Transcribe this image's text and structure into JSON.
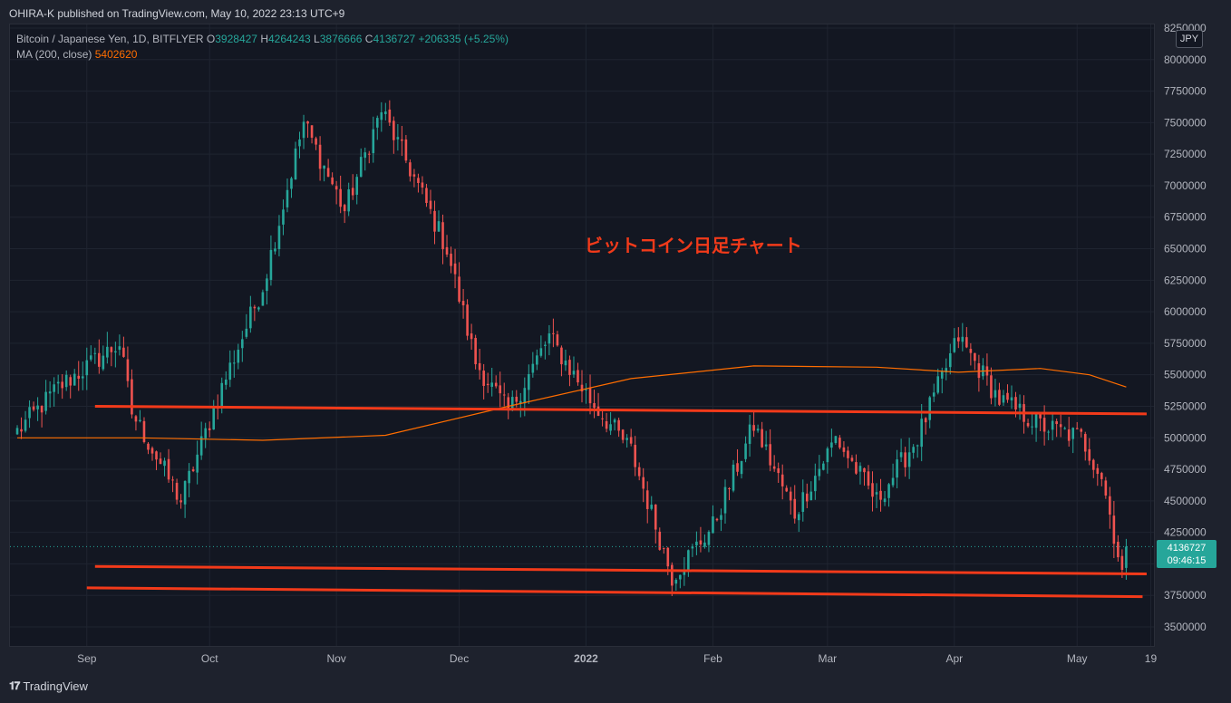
{
  "header": {
    "published": "OHIRA-K published on TradingView.com, May 10, 2022 23:13 UTC+9"
  },
  "legend": {
    "symbol": "Bitcoin / Japanese Yen, 1D, BITFLYER",
    "o_label": "O",
    "o_value": "3928427",
    "h_label": "H",
    "h_value": "4264243",
    "l_label": "L",
    "l_value": "3876666",
    "c_label": "C",
    "c_value": "4136727",
    "change": "+206335 (+5.25%)",
    "ma_label": "MA (200, close)",
    "ma_value": "5402620"
  },
  "annotation": "ビットコイン日足チャート",
  "currency": "JPY",
  "price_tag": {
    "price": "4136727",
    "countdown": "09:46:15"
  },
  "footer": {
    "logo_text": "TradingView"
  },
  "colors": {
    "up": "#26a69a",
    "down": "#ef5350",
    "ma": "#ff6d00",
    "trendline": "#f23a1a",
    "background": "#131722"
  },
  "chart_data": {
    "type": "candlestick",
    "y_ticks": [
      "8250000",
      "8000000",
      "7750000",
      "7500000",
      "7250000",
      "7000000",
      "6750000",
      "6500000",
      "6250000",
      "6000000",
      "5750000",
      "5500000",
      "5250000",
      "5000000",
      "4750000",
      "4500000",
      "4250000",
      "4000000",
      "3750000",
      "3500000"
    ],
    "ylim": [
      3350000,
      8250000
    ],
    "x_ticks": [
      {
        "label": "Sep",
        "day": 17
      },
      {
        "label": "Oct",
        "day": 47
      },
      {
        "label": "Nov",
        "day": 78
      },
      {
        "label": "Dec",
        "day": 108
      },
      {
        "label": "2022",
        "day": 139
      },
      {
        "label": "Feb",
        "day": 170
      },
      {
        "label": "Mar",
        "day": 198
      },
      {
        "label": "Apr",
        "day": 229
      },
      {
        "label": "May",
        "day": 259
      },
      {
        "label": "19",
        "day": 277
      }
    ],
    "x_range_days": [
      -2,
      278
    ],
    "last_close": 4136727,
    "key_points": [
      {
        "day": 0,
        "close": 5050000
      },
      {
        "day": 10,
        "close": 5400000
      },
      {
        "day": 25,
        "close": 5750000
      },
      {
        "day": 28,
        "close": 5200000
      },
      {
        "day": 40,
        "close": 4500000
      },
      {
        "day": 50,
        "close": 5400000
      },
      {
        "day": 60,
        "close": 6200000
      },
      {
        "day": 70,
        "close": 7500000
      },
      {
        "day": 80,
        "close": 6800000
      },
      {
        "day": 89,
        "close": 7600000
      },
      {
        "day": 95,
        "close": 7200000
      },
      {
        "day": 105,
        "close": 6500000
      },
      {
        "day": 112,
        "close": 5600000
      },
      {
        "day": 120,
        "close": 5200000
      },
      {
        "day": 130,
        "close": 5800000
      },
      {
        "day": 140,
        "close": 5300000
      },
      {
        "day": 150,
        "close": 4900000
      },
      {
        "day": 160,
        "close": 3900000
      },
      {
        "day": 170,
        "close": 4300000
      },
      {
        "day": 180,
        "close": 5100000
      },
      {
        "day": 190,
        "close": 4400000
      },
      {
        "day": 200,
        "close": 5000000
      },
      {
        "day": 210,
        "close": 4500000
      },
      {
        "day": 220,
        "close": 5000000
      },
      {
        "day": 230,
        "close": 5800000
      },
      {
        "day": 240,
        "close": 5300000
      },
      {
        "day": 250,
        "close": 5100000
      },
      {
        "day": 260,
        "close": 5000000
      },
      {
        "day": 265,
        "close": 4700000
      },
      {
        "day": 270,
        "close": 3930000
      },
      {
        "day": 271,
        "close": 4136727
      }
    ],
    "ma200": [
      {
        "day": 0,
        "value": 5000000
      },
      {
        "day": 30,
        "value": 5000000
      },
      {
        "day": 60,
        "value": 4980000
      },
      {
        "day": 90,
        "value": 5020000
      },
      {
        "day": 120,
        "value": 5250000
      },
      {
        "day": 150,
        "value": 5470000
      },
      {
        "day": 180,
        "value": 5570000
      },
      {
        "day": 210,
        "value": 5560000
      },
      {
        "day": 230,
        "value": 5520000
      },
      {
        "day": 250,
        "value": 5550000
      },
      {
        "day": 262,
        "value": 5500000
      },
      {
        "day": 271,
        "value": 5402620
      }
    ],
    "trendlines": [
      {
        "from": {
          "day": 19,
          "price": 5250000
        },
        "to": {
          "day": 276,
          "price": 5190000
        }
      },
      {
        "from": {
          "day": 19,
          "price": 3980000
        },
        "to": {
          "day": 276,
          "price": 3920000
        }
      },
      {
        "from": {
          "day": 17,
          "price": 3810000
        },
        "to": {
          "day": 275,
          "price": 3740000
        }
      }
    ]
  }
}
